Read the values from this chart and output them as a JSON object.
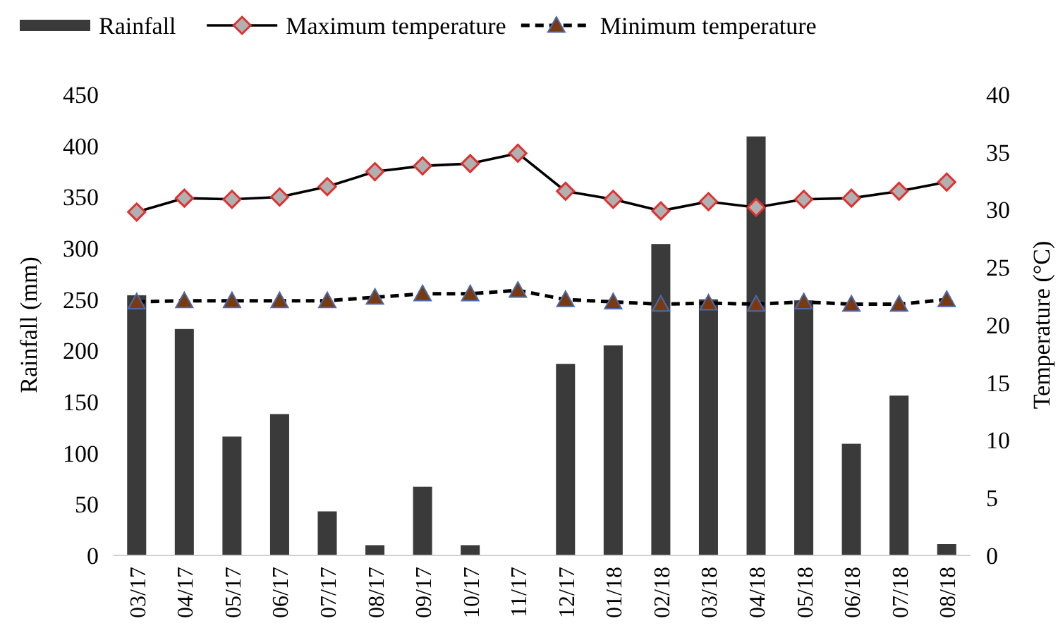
{
  "chart_data": {
    "type": "bar",
    "categories": [
      "03/17",
      "04/17",
      "05/17",
      "06/17",
      "07/17",
      "08/17",
      "09/17",
      "10/17",
      "11/17",
      "12/17",
      "01/18",
      "02/18",
      "03/18",
      "04/18",
      "05/18",
      "06/18",
      "07/18",
      "08/18"
    ],
    "series": [
      {
        "name": "Rainfall",
        "color": "#3a3a3a",
        "values": [
          254,
          221,
          116,
          138,
          43,
          10,
          67,
          10,
          0,
          187,
          205,
          304,
          250,
          409,
          249,
          109,
          156,
          11
        ]
      },
      {
        "name": "Maximum temperature",
        "type": "line",
        "axis": "y2",
        "color": "#000000",
        "marker": "diamond",
        "line_style": "solid",
        "values": [
          29.8,
          31.0,
          30.9,
          31.1,
          32.0,
          33.3,
          33.8,
          34.0,
          34.9,
          31.6,
          30.9,
          29.9,
          30.7,
          30.2,
          30.9,
          31.0,
          31.6,
          32.4
        ]
      },
      {
        "name": "Minimum temperature",
        "type": "line",
        "axis": "y2",
        "color": "#000000",
        "marker": "triangle",
        "line_style": "dashed",
        "values": [
          22.0,
          22.1,
          22.1,
          22.1,
          22.1,
          22.4,
          22.7,
          22.7,
          23.0,
          22.2,
          22.0,
          21.8,
          21.9,
          21.8,
          22.0,
          21.8,
          21.8,
          22.2
        ]
      }
    ],
    "ylabel": "Rainfall (mm)",
    "y2label": "Temperature (°C)",
    "ylim": [
      0,
      450
    ],
    "yticks": [
      0,
      50,
      100,
      150,
      200,
      250,
      300,
      350,
      400,
      450
    ],
    "y2lim": [
      0,
      40
    ],
    "y2ticks": [
      0,
      5,
      10,
      15,
      20,
      25,
      30,
      35,
      40
    ],
    "grid": false,
    "legend": "top"
  }
}
